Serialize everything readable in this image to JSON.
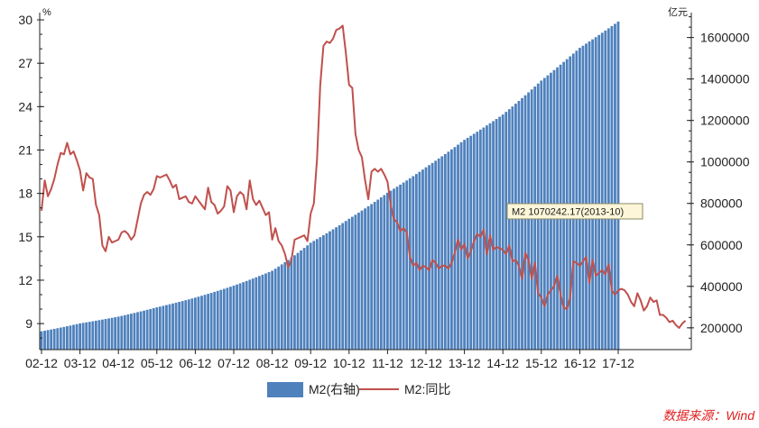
{
  "chart_data": {
    "type": "bar",
    "title": "",
    "source": "数据来源：Wind",
    "x_ticks": [
      "02-12",
      "03-12",
      "04-12",
      "05-12",
      "06-12",
      "07-12",
      "08-12",
      "09-12",
      "10-12",
      "11-12",
      "12-12",
      "13-12",
      "14-12",
      "15-12",
      "16-12",
      "17-12"
    ],
    "left_axis": {
      "unit": "%",
      "min": 7.2,
      "max": 30.5,
      "ticks": [
        9,
        12,
        15,
        18,
        21,
        24,
        27,
        30
      ]
    },
    "right_axis": {
      "unit": "亿元",
      "min": 95000,
      "max": 1720000,
      "ticks": [
        200000,
        400000,
        600000,
        800000,
        1000000,
        1200000,
        1400000,
        1600000
      ]
    },
    "legend": [
      {
        "name": "M2(右轴)",
        "color": "#4f81bd",
        "kind": "bar"
      },
      {
        "name": "M2:同比",
        "color": "#c0504d",
        "kind": "line"
      }
    ],
    "tooltip": {
      "text": "M2 1070242.17(2013-10)"
    },
    "series": [
      {
        "name": "M2(右轴)",
        "type": "bar",
        "axis": "right",
        "anchors": [
          [
            0,
            183200
          ],
          [
            12,
            221200
          ],
          [
            24,
            254100
          ],
          [
            36,
            298800
          ],
          [
            48,
            345600
          ],
          [
            60,
            403400
          ],
          [
            72,
            475200
          ],
          [
            84,
            610200
          ],
          [
            96,
            725800
          ],
          [
            108,
            851600
          ],
          [
            120,
            974100
          ],
          [
            132,
            1106500
          ],
          [
            144,
            1228400
          ],
          [
            156,
            1392300
          ],
          [
            168,
            1550100
          ],
          [
            180,
            1676800
          ]
        ],
        "end_month": 180
      },
      {
        "name": "M2:同比",
        "type": "line",
        "axis": "left",
        "values": [
          16.8,
          18.9,
          17.8,
          18.3,
          19.0,
          20.0,
          20.8,
          20.7,
          21.5,
          20.7,
          20.9,
          20.3,
          19.6,
          18.2,
          19.4,
          19.1,
          19.0,
          17.2,
          16.5,
          14.4,
          14.0,
          15.0,
          14.6,
          14.7,
          14.8,
          15.3,
          15.4,
          15.2,
          14.8,
          15.1,
          16.2,
          17.3,
          17.9,
          18.1,
          17.9,
          18.3,
          19.2,
          19.1,
          19.2,
          19.3,
          18.9,
          18.4,
          18.6,
          17.6,
          17.7,
          17.8,
          17.4,
          17.3,
          17.8,
          17.5,
          17.2,
          16.9,
          18.4,
          17.4,
          17.2,
          16.6,
          16.8,
          17.1,
          18.5,
          18.2,
          16.7,
          17.8,
          18.1,
          17.9,
          16.9,
          18.9,
          17.6,
          17.2,
          17.5,
          17.0,
          16.5,
          16.7,
          14.8,
          15.6,
          14.7,
          14.4,
          13.8,
          12.9,
          13.4,
          14.8,
          14.9,
          15.0,
          15.1,
          14.7,
          16.6,
          17.3,
          20.4,
          25.5,
          28.2,
          28.5,
          28.4,
          28.7,
          29.3,
          29.4,
          29.6,
          27.7,
          25.5,
          25.3,
          22.1,
          21.0,
          20.5,
          18.9,
          17.6,
          19.5,
          19.7,
          19.5,
          19.7,
          19.3,
          18.8,
          17.2,
          16.2,
          16.0,
          15.4,
          15.6,
          15.3,
          13.6,
          13.0,
          13.2,
          12.7,
          13.0,
          12.9,
          12.7,
          13.4,
          13.2,
          12.8,
          13.0,
          13.0,
          12.8,
          13.2,
          13.9,
          14.8,
          14.1,
          14.5,
          13.5,
          14.0,
          14.7,
          15.2,
          15.0,
          15.5,
          13.8,
          15.1,
          14.1,
          14.3,
          14.2,
          14.1,
          13.8,
          14.4,
          13.3,
          13.4,
          13.0,
          12.1,
          13.9,
          13.4,
          12.1,
          13.2,
          11.1,
          10.8,
          10.2,
          11.0,
          11.3,
          11.6,
          12.3,
          11.0,
          10.1,
          10.0,
          10.8,
          13.3,
          13.2,
          13.0,
          13.3,
          13.6,
          11.8,
          13.4,
          12.3,
          12.5,
          12.7,
          12.4,
          13.1,
          11.3,
          11.0,
          11.3,
          11.4,
          11.3,
          11.0,
          10.5,
          10.2,
          11.1,
          10.6,
          9.9,
          10.2,
          10.8,
          10.5,
          10.6,
          9.6,
          9.6,
          9.4,
          9.1,
          9.2,
          8.9,
          8.7,
          9.0,
          9.2
        ]
      }
    ]
  }
}
